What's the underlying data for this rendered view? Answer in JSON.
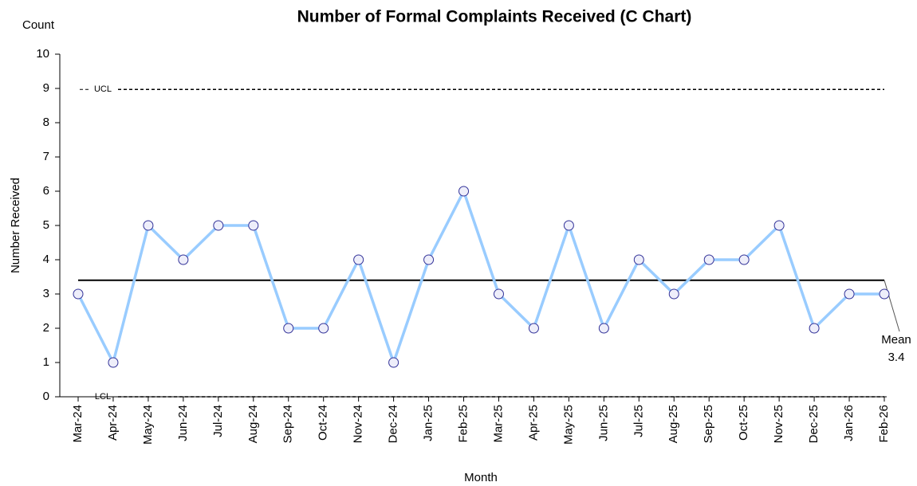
{
  "chart_data": {
    "type": "line",
    "title": "Number of Formal Complaints Received (C Chart)",
    "y_unit_label": "Count",
    "ylabel": "Number Received",
    "xlabel": "Month",
    "categories": [
      "Mar-24",
      "Apr-24",
      "May-24",
      "Jun-24",
      "Jul-24",
      "Aug-24",
      "Sep-24",
      "Oct-24",
      "Nov-24",
      "Dec-24",
      "Jan-25",
      "Feb-25",
      "Mar-25",
      "Apr-25",
      "May-25",
      "Jun-25",
      "Jul-25",
      "Aug-25",
      "Sep-25",
      "Oct-25",
      "Nov-25",
      "Dec-25",
      "Jan-26",
      "Feb-26"
    ],
    "values": [
      3,
      1,
      5,
      4,
      5,
      5,
      2,
      2,
      4,
      1,
      4,
      6,
      3,
      2,
      5,
      2,
      4,
      3,
      4,
      4,
      5,
      2,
      3,
      3
    ],
    "color": "#99ccff",
    "marker_color": "#333399",
    "ylim": [
      0,
      10
    ],
    "yticks": [
      0,
      1,
      2,
      3,
      4,
      5,
      6,
      7,
      8,
      9,
      10
    ],
    "control_lines": [
      {
        "label": "UCL",
        "value": 8.97
      },
      {
        "label": "LCL",
        "value": 0
      }
    ],
    "mean": {
      "label": "Mean",
      "value": 3.4
    }
  }
}
